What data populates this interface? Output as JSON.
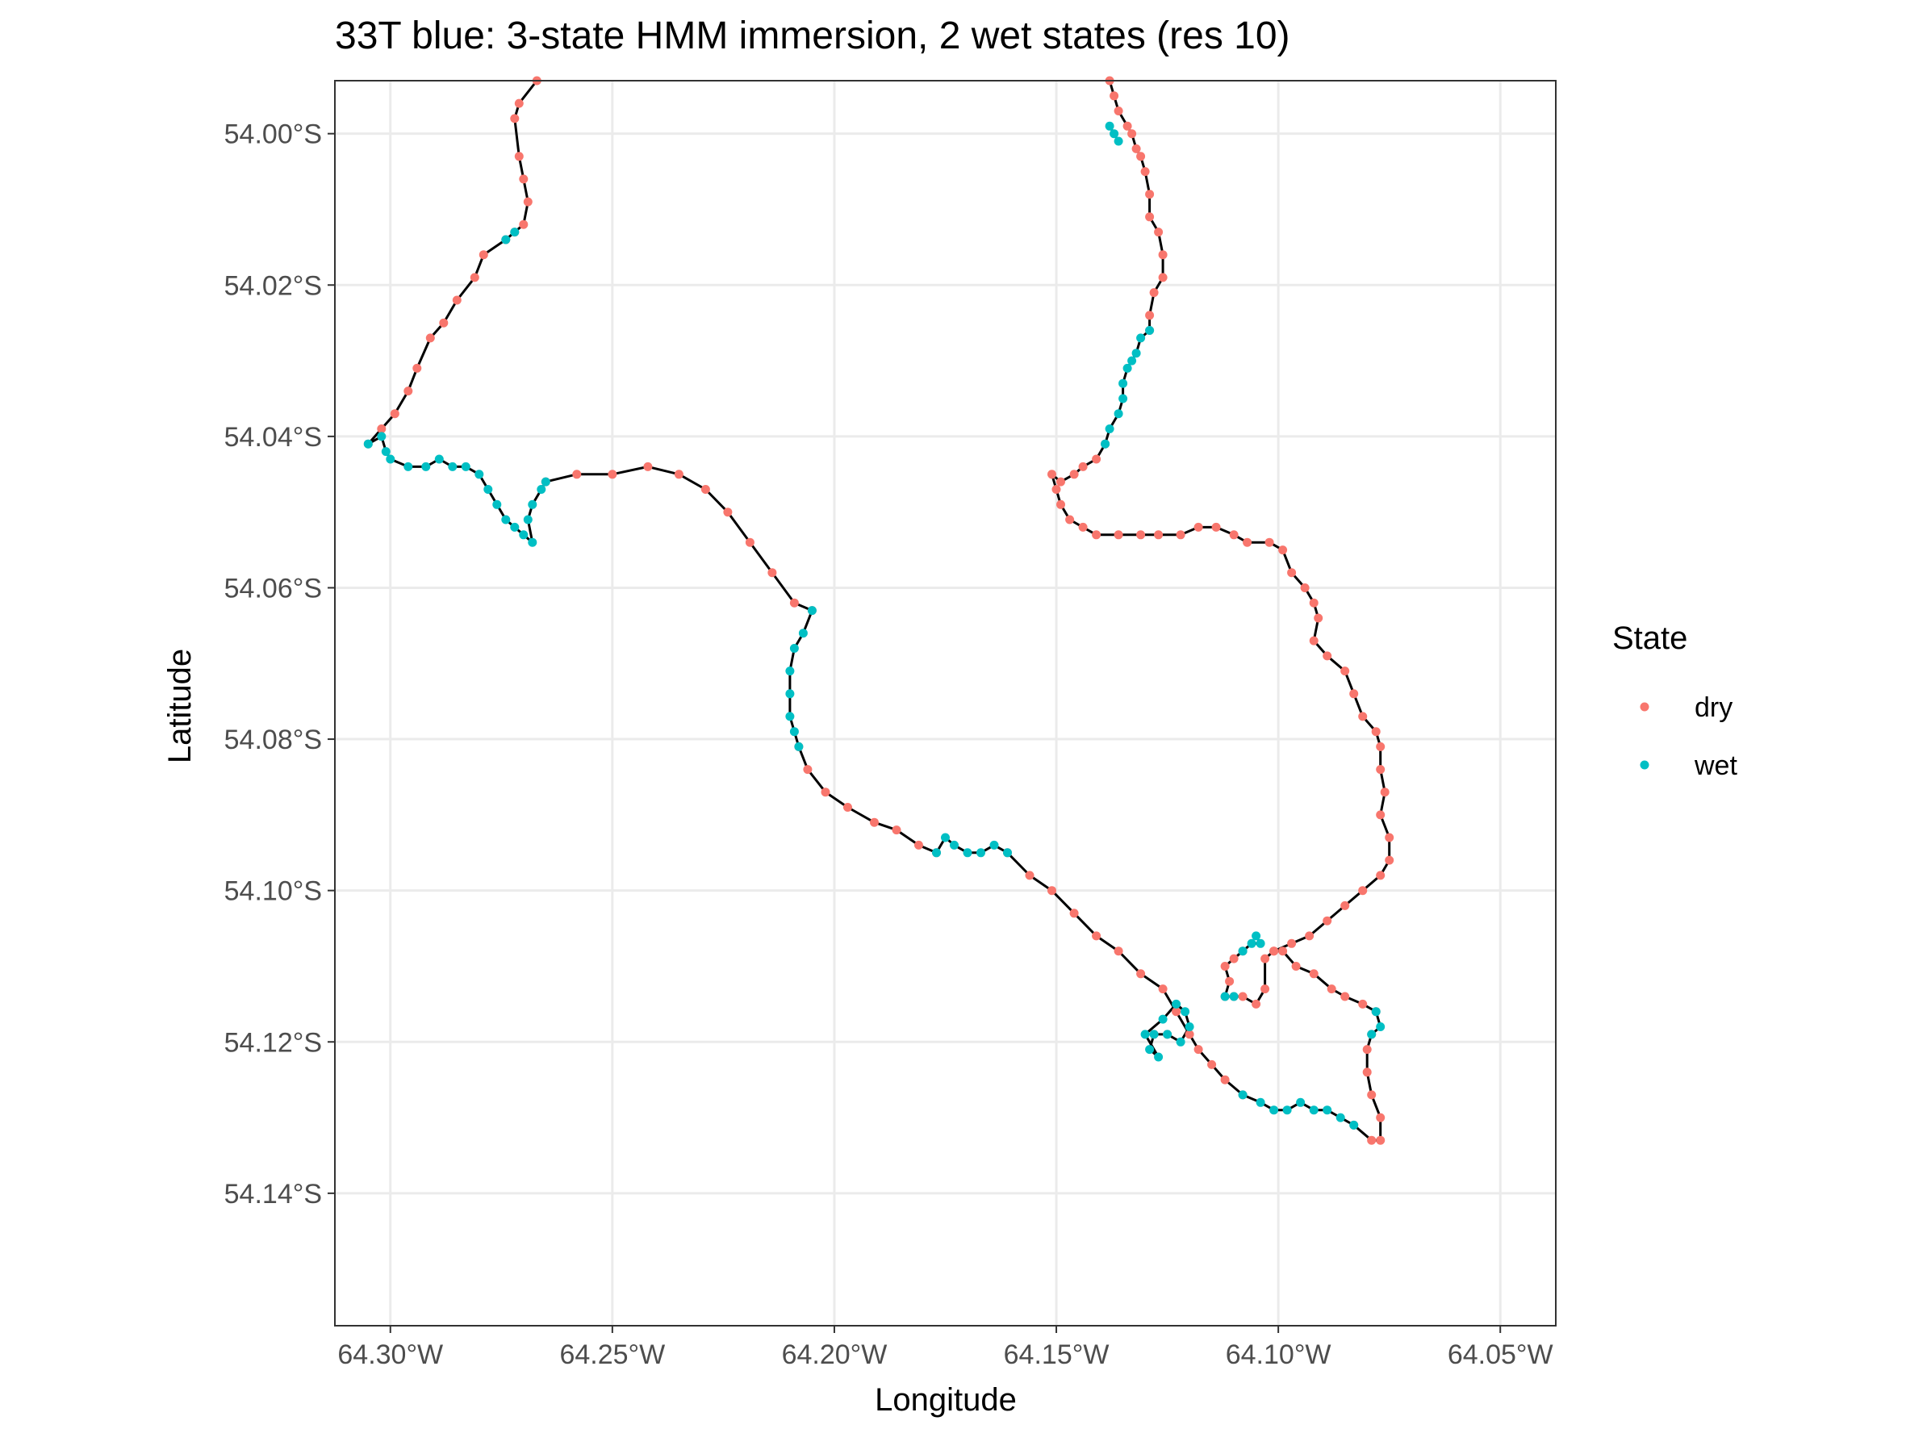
{
  "chart_data": {
    "type": "scatter",
    "title": "33T blue: 3-state HMM immersion, 2 wet states (res 10)",
    "xlabel": "Longitude",
    "ylabel": "Latitude",
    "xlim": [
      -64.3125,
      -64.0375
    ],
    "ylim": [
      -54.1575,
      -53.993
    ],
    "x_ticks": [
      -64.3,
      -64.25,
      -64.2,
      -64.15,
      -64.1,
      -64.05
    ],
    "x_tick_labels": [
      "64.30°W",
      "64.25°W",
      "64.20°W",
      "64.15°W",
      "64.10°W",
      "64.05°W"
    ],
    "y_ticks": [
      -54.0,
      -54.02,
      -54.04,
      -54.06,
      -54.08,
      -54.1,
      -54.12,
      -54.14
    ],
    "y_tick_labels": [
      "54.00°S",
      "54.02°S",
      "54.04°S",
      "54.06°S",
      "54.08°S",
      "54.10°S",
      "54.12°S",
      "54.14°S"
    ],
    "grid": true,
    "legend": {
      "title": "State",
      "placement": "right",
      "entries": [
        {
          "label": "dry",
          "color": "#F8766D"
        },
        {
          "label": "wet",
          "color": "#00BFC4"
        }
      ]
    },
    "path_color": "#000000",
    "series": [
      {
        "name": "dry",
        "color": "#F8766D",
        "segments": [
          [
            [
              -64.267,
              -53.993
            ],
            [
              -64.271,
              -53.996
            ],
            [
              -64.272,
              -53.998
            ],
            [
              -64.271,
              -54.003
            ],
            [
              -64.27,
              -54.006
            ],
            [
              -64.269,
              -54.009
            ],
            [
              -64.27,
              -54.012
            ],
            [
              -64.272,
              -54.013
            ]
          ],
          [
            [
              -64.274,
              -54.014
            ],
            [
              -64.279,
              -54.016
            ],
            [
              -64.281,
              -54.019
            ],
            [
              -64.285,
              -54.022
            ],
            [
              -64.288,
              -54.025
            ],
            [
              -64.291,
              -54.027
            ],
            [
              -64.294,
              -54.031
            ],
            [
              -64.296,
              -54.034
            ],
            [
              -64.299,
              -54.037
            ],
            [
              -64.302,
              -54.039
            ],
            [
              -64.305,
              -54.041
            ]
          ],
          [
            [
              -64.265,
              -54.046
            ],
            [
              -64.258,
              -54.045
            ],
            [
              -64.25,
              -54.045
            ],
            [
              -64.242,
              -54.044
            ],
            [
              -64.235,
              -54.045
            ],
            [
              -64.229,
              -54.047
            ],
            [
              -64.224,
              -54.05
            ],
            [
              -64.219,
              -54.054
            ],
            [
              -64.214,
              -54.058
            ],
            [
              -64.209,
              -54.062
            ],
            [
              -64.205,
              -54.063
            ]
          ],
          [
            [
              -64.208,
              -54.081
            ],
            [
              -64.206,
              -54.084
            ],
            [
              -64.202,
              -54.087
            ],
            [
              -64.197,
              -54.089
            ],
            [
              -64.191,
              -54.091
            ],
            [
              -64.186,
              -54.092
            ],
            [
              -64.181,
              -54.094
            ],
            [
              -64.177,
              -54.095
            ]
          ],
          [
            [
              -64.161,
              -54.095
            ],
            [
              -64.156,
              -54.098
            ],
            [
              -64.151,
              -54.1
            ],
            [
              -64.146,
              -54.103
            ],
            [
              -64.141,
              -54.106
            ],
            [
              -64.136,
              -54.108
            ],
            [
              -64.131,
              -54.111
            ],
            [
              -64.126,
              -54.113
            ],
            [
              -64.123,
              -54.116
            ],
            [
              -64.12,
              -54.119
            ],
            [
              -64.118,
              -54.121
            ],
            [
              -64.115,
              -54.123
            ],
            [
              -64.112,
              -54.125
            ],
            [
              -64.108,
              -54.127
            ]
          ],
          [
            [
              -64.083,
              -54.131
            ],
            [
              -64.079,
              -54.133
            ],
            [
              -64.077,
              -54.133
            ],
            [
              -64.077,
              -54.13
            ],
            [
              -64.079,
              -54.127
            ],
            [
              -64.08,
              -54.124
            ],
            [
              -64.08,
              -54.121
            ],
            [
              -64.079,
              -54.119
            ]
          ],
          [
            [
              -64.078,
              -54.116
            ],
            [
              -64.081,
              -54.115
            ],
            [
              -64.085,
              -54.114
            ],
            [
              -64.088,
              -54.113
            ],
            [
              -64.092,
              -54.111
            ],
            [
              -64.096,
              -54.11
            ],
            [
              -64.099,
              -54.108
            ],
            [
              -64.101,
              -54.108
            ],
            [
              -64.103,
              -54.109
            ],
            [
              -64.103,
              -54.113
            ],
            [
              -64.105,
              -54.115
            ],
            [
              -64.108,
              -54.114
            ],
            [
              -64.11,
              -54.114
            ]
          ],
          [
            [
              -64.108,
              -54.108
            ],
            [
              -64.11,
              -54.109
            ],
            [
              -64.112,
              -54.11
            ],
            [
              -64.111,
              -54.112
            ],
            [
              -64.112,
              -54.114
            ]
          ],
          [
            [
              -64.125,
              -54.119
            ],
            [
              -64.128,
              -54.119
            ]
          ],
          [
            [
              -64.101,
              -54.108
            ],
            [
              -64.097,
              -54.107
            ],
            [
              -64.093,
              -54.106
            ],
            [
              -64.089,
              -54.104
            ],
            [
              -64.085,
              -54.102
            ],
            [
              -64.081,
              -54.1
            ],
            [
              -64.077,
              -54.098
            ],
            [
              -64.075,
              -54.096
            ],
            [
              -64.075,
              -54.093
            ],
            [
              -64.077,
              -54.09
            ],
            [
              -64.076,
              -54.087
            ],
            [
              -64.077,
              -54.084
            ],
            [
              -64.077,
              -54.081
            ],
            [
              -64.078,
              -54.079
            ],
            [
              -64.081,
              -54.077
            ],
            [
              -64.083,
              -54.074
            ],
            [
              -64.085,
              -54.071
            ],
            [
              -64.089,
              -54.069
            ],
            [
              -64.092,
              -54.067
            ],
            [
              -64.091,
              -54.064
            ],
            [
              -64.092,
              -54.062
            ],
            [
              -64.094,
              -54.06
            ],
            [
              -64.097,
              -54.058
            ],
            [
              -64.099,
              -54.055
            ],
            [
              -64.102,
              -54.054
            ],
            [
              -64.107,
              -54.054
            ],
            [
              -64.11,
              -54.053
            ],
            [
              -64.114,
              -54.052
            ],
            [
              -64.118,
              -54.052
            ],
            [
              -64.122,
              -54.053
            ],
            [
              -64.127,
              -54.053
            ],
            [
              -64.131,
              -54.053
            ],
            [
              -64.136,
              -54.053
            ],
            [
              -64.141,
              -54.053
            ],
            [
              -64.144,
              -54.052
            ],
            [
              -64.147,
              -54.051
            ],
            [
              -64.149,
              -54.049
            ],
            [
              -64.15,
              -54.047
            ],
            [
              -64.151,
              -54.045
            ],
            [
              -64.149,
              -54.046
            ],
            [
              -64.146,
              -54.045
            ],
            [
              -64.144,
              -54.044
            ],
            [
              -64.141,
              -54.043
            ],
            [
              -64.139,
              -54.041
            ]
          ],
          [
            [
              -64.129,
              -54.026
            ],
            [
              -64.129,
              -54.024
            ],
            [
              -64.128,
              -54.021
            ],
            [
              -64.126,
              -54.019
            ],
            [
              -64.126,
              -54.016
            ],
            [
              -64.127,
              -54.013
            ],
            [
              -64.129,
              -54.011
            ],
            [
              -64.129,
              -54.008
            ],
            [
              -64.13,
              -54.005
            ],
            [
              -64.131,
              -54.003
            ],
            [
              -64.132,
              -54.002
            ],
            [
              -64.133,
              -54.0
            ],
            [
              -64.134,
              -53.999
            ],
            [
              -64.136,
              -53.997
            ],
            [
              -64.137,
              -53.995
            ],
            [
              -64.138,
              -53.993
            ]
          ]
        ]
      },
      {
        "name": "wet",
        "color": "#00BFC4",
        "segments": [
          [
            [
              -64.272,
              -54.013
            ],
            [
              -64.274,
              -54.014
            ]
          ],
          [
            [
              -64.305,
              -54.041
            ],
            [
              -64.302,
              -54.04
            ],
            [
              -64.301,
              -54.042
            ],
            [
              -64.3,
              -54.043
            ],
            [
              -64.296,
              -54.044
            ],
            [
              -64.292,
              -54.044
            ],
            [
              -64.289,
              -54.043
            ],
            [
              -64.286,
              -54.044
            ],
            [
              -64.283,
              -54.044
            ],
            [
              -64.28,
              -54.045
            ],
            [
              -64.278,
              -54.047
            ],
            [
              -64.276,
              -54.049
            ],
            [
              -64.274,
              -54.051
            ],
            [
              -64.272,
              -54.052
            ],
            [
              -64.27,
              -54.053
            ],
            [
              -64.268,
              -54.054
            ],
            [
              -64.269,
              -54.051
            ],
            [
              -64.268,
              -54.049
            ],
            [
              -64.266,
              -54.047
            ],
            [
              -64.265,
              -54.046
            ]
          ],
          [
            [
              -64.205,
              -54.063
            ],
            [
              -64.207,
              -54.066
            ],
            [
              -64.209,
              -54.068
            ],
            [
              -64.21,
              -54.071
            ],
            [
              -64.21,
              -54.074
            ],
            [
              -64.21,
              -54.077
            ],
            [
              -64.209,
              -54.079
            ],
            [
              -64.208,
              -54.081
            ]
          ],
          [
            [
              -64.177,
              -54.095
            ],
            [
              -64.175,
              -54.093
            ],
            [
              -64.173,
              -54.094
            ],
            [
              -64.17,
              -54.095
            ],
            [
              -64.167,
              -54.095
            ],
            [
              -64.164,
              -54.094
            ],
            [
              -64.161,
              -54.095
            ]
          ],
          [
            [
              -64.108,
              -54.127
            ],
            [
              -64.104,
              -54.128
            ],
            [
              -64.101,
              -54.129
            ],
            [
              -64.098,
              -54.129
            ],
            [
              -64.095,
              -54.128
            ],
            [
              -64.092,
              -54.129
            ],
            [
              -64.089,
              -54.129
            ],
            [
              -64.086,
              -54.13
            ],
            [
              -64.083,
              -54.131
            ]
          ],
          [
            [
              -64.079,
              -54.119
            ],
            [
              -64.077,
              -54.118
            ],
            [
              -64.078,
              -54.116
            ]
          ],
          [
            [
              -64.11,
              -54.114
            ],
            [
              -64.112,
              -54.114
            ]
          ],
          [
            [
              -64.128,
              -54.119
            ],
            [
              -64.129,
              -54.121
            ],
            [
              -64.127,
              -54.122
            ],
            [
              -64.13,
              -54.119
            ],
            [
              -64.126,
              -54.117
            ],
            [
              -64.123,
              -54.115
            ],
            [
              -64.121,
              -54.116
            ],
            [
              -64.12,
              -54.118
            ],
            [
              -64.122,
              -54.12
            ],
            [
              -64.125,
              -54.119
            ]
          ],
          [
            [
              -64.105,
              -54.106
            ],
            [
              -64.104,
              -54.107
            ],
            [
              -64.106,
              -54.107
            ],
            [
              -64.108,
              -54.108
            ]
          ],
          [
            [
              -64.139,
              -54.041
            ],
            [
              -64.138,
              -54.039
            ],
            [
              -64.136,
              -54.037
            ],
            [
              -64.135,
              -54.035
            ],
            [
              -64.135,
              -54.033
            ],
            [
              -64.134,
              -54.031
            ],
            [
              -64.133,
              -54.03
            ],
            [
              -64.132,
              -54.029
            ],
            [
              -64.131,
              -54.027
            ],
            [
              -64.129,
              -54.026
            ]
          ],
          [
            [
              -64.138,
              -53.999
            ],
            [
              -64.137,
              -54.0
            ],
            [
              -64.136,
              -54.001
            ]
          ]
        ]
      }
    ]
  }
}
